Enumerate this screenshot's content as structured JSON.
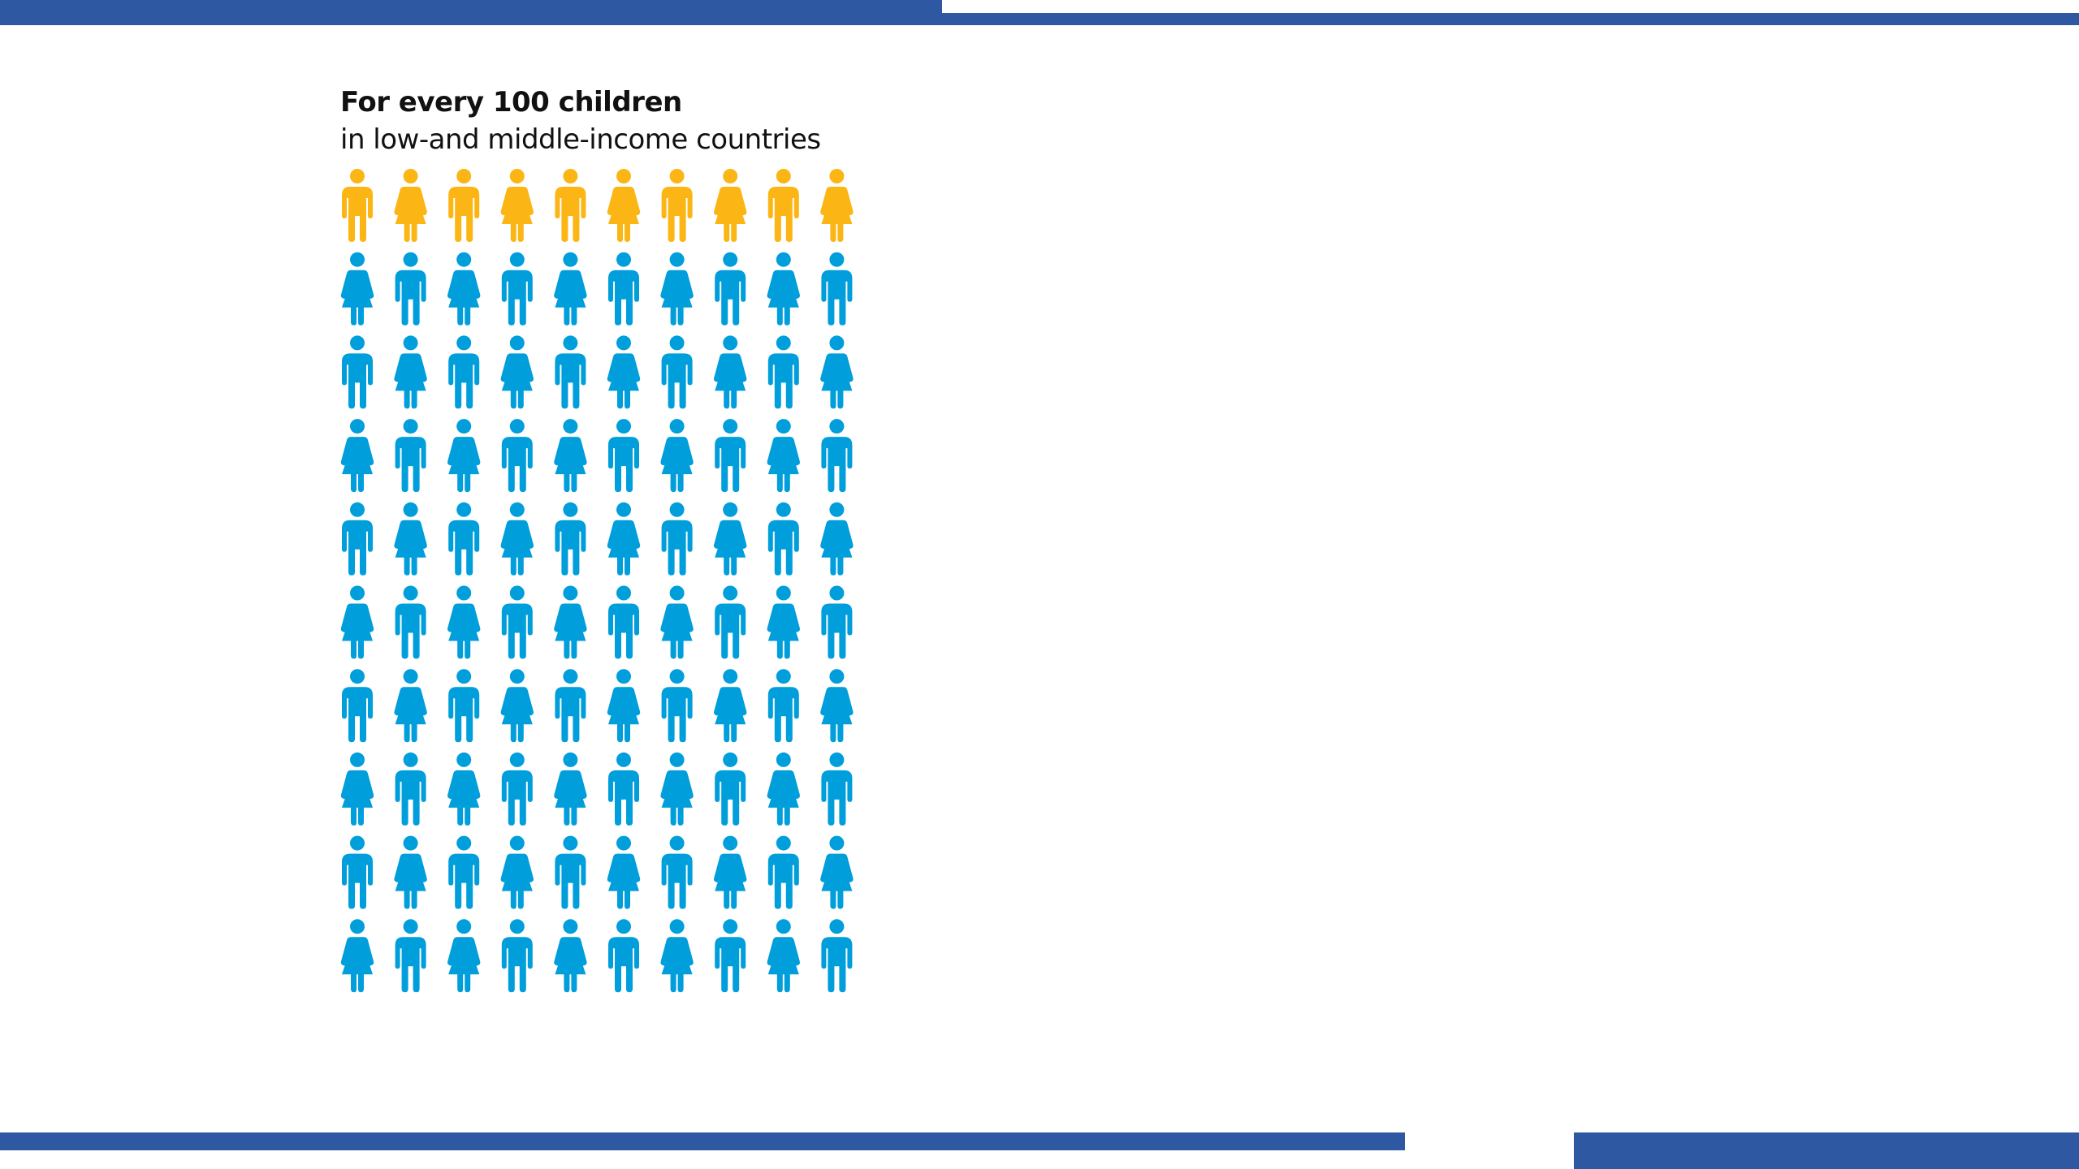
{
  "colors": {
    "frame_bar": "#2e59a2",
    "highlight": "#fbb615",
    "base": "#009edb",
    "text": "#111111"
  },
  "chart_data": {
    "type": "pictogram",
    "title": "For every 100 children",
    "subtitle": "in low-and middle-income countries",
    "total": 100,
    "rows": 10,
    "columns": 10,
    "highlighted": 10,
    "highlight_color": "#fbb615",
    "base_color": "#009edb",
    "icons": [
      "boy-icon",
      "girl-icon"
    ]
  }
}
